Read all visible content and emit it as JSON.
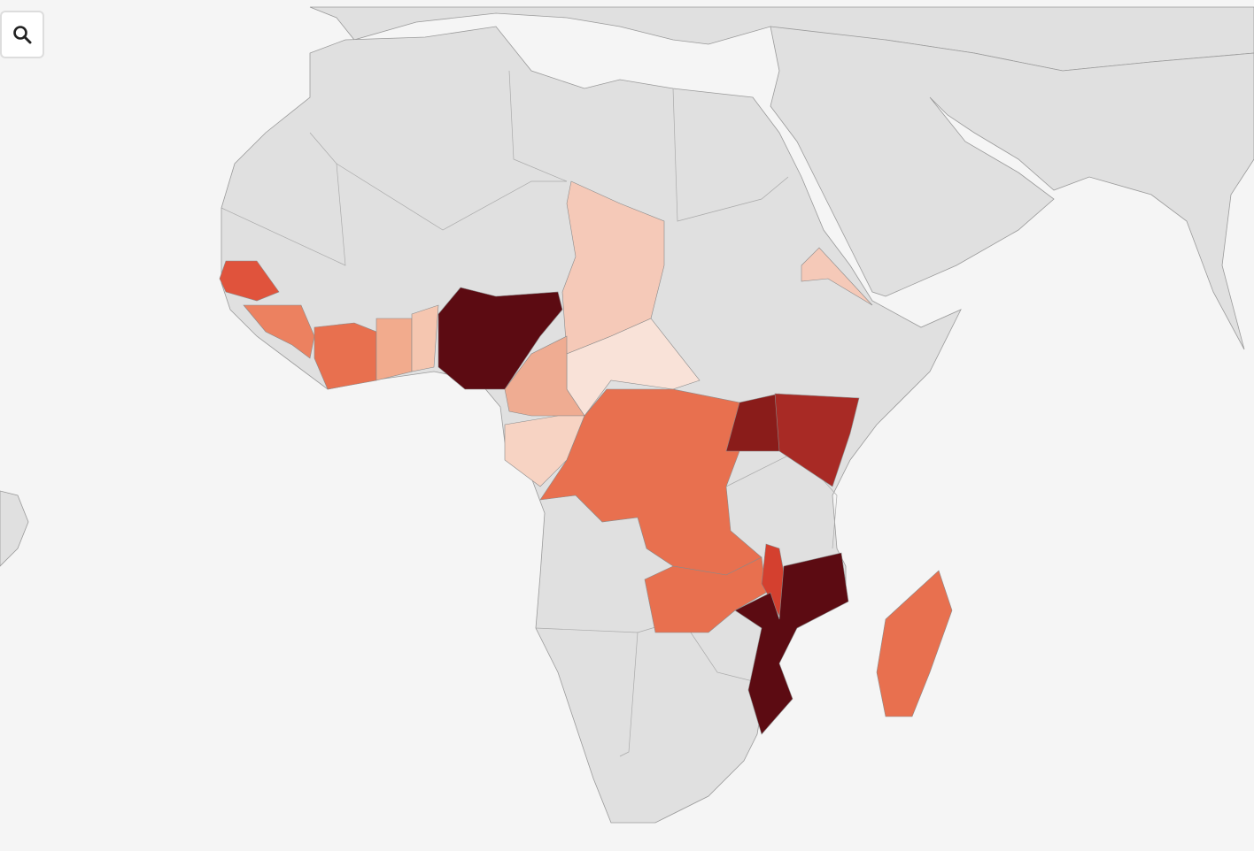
{
  "map": {
    "region_colors": [
      "#5c0b12",
      "#f5c9b8",
      "#f9e2d8",
      "#efac92",
      "#f7d3c3",
      "#e8704f",
      "#8a1c1a",
      "#a82a25",
      "#e8704f",
      "#d4402f",
      "#5c0b12",
      "#e8704f",
      "#e0533c",
      "#ec8160",
      "#e8704f",
      "#f2ab8d",
      "#f5c6b0",
      "#f5c9b8"
    ]
  }
}
